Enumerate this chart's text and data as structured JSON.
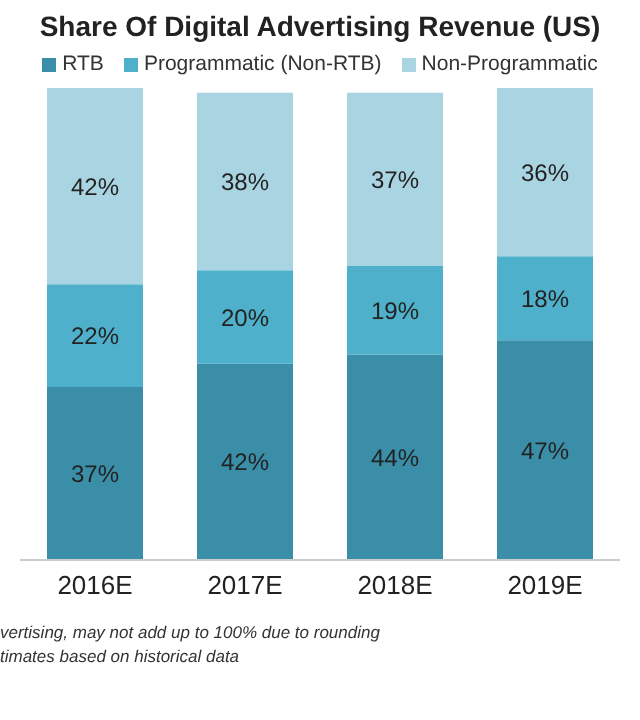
{
  "chart_data": {
    "type": "bar",
    "title": "Share Of Digital Advertising Revenue (US)",
    "categories": [
      "2016E",
      "2017E",
      "2018E",
      "2019E"
    ],
    "series": [
      {
        "name": "RTB",
        "color": "#3a8ea8",
        "values": [
          37,
          42,
          44,
          47
        ],
        "value_labels": [
          "37%",
          "42%",
          "44%",
          "47%"
        ]
      },
      {
        "name": "Programmatic (Non-RTB)",
        "color": "#4fb0cc",
        "values": [
          22,
          20,
          19,
          18
        ],
        "value_labels": [
          "22%",
          "20%",
          "19%",
          "18%"
        ]
      },
      {
        "name": "Non-Programmatic",
        "color": "#a9d4e1",
        "values": [
          42,
          38,
          37,
          36
        ],
        "value_labels": [
          "42%",
          "38%",
          "37%",
          "36%"
        ]
      }
    ],
    "stacked": true,
    "legend": "top",
    "annotations": [
      "vertising, may not add up to 100% due to rounding",
      "timates based on historical data"
    ]
  }
}
